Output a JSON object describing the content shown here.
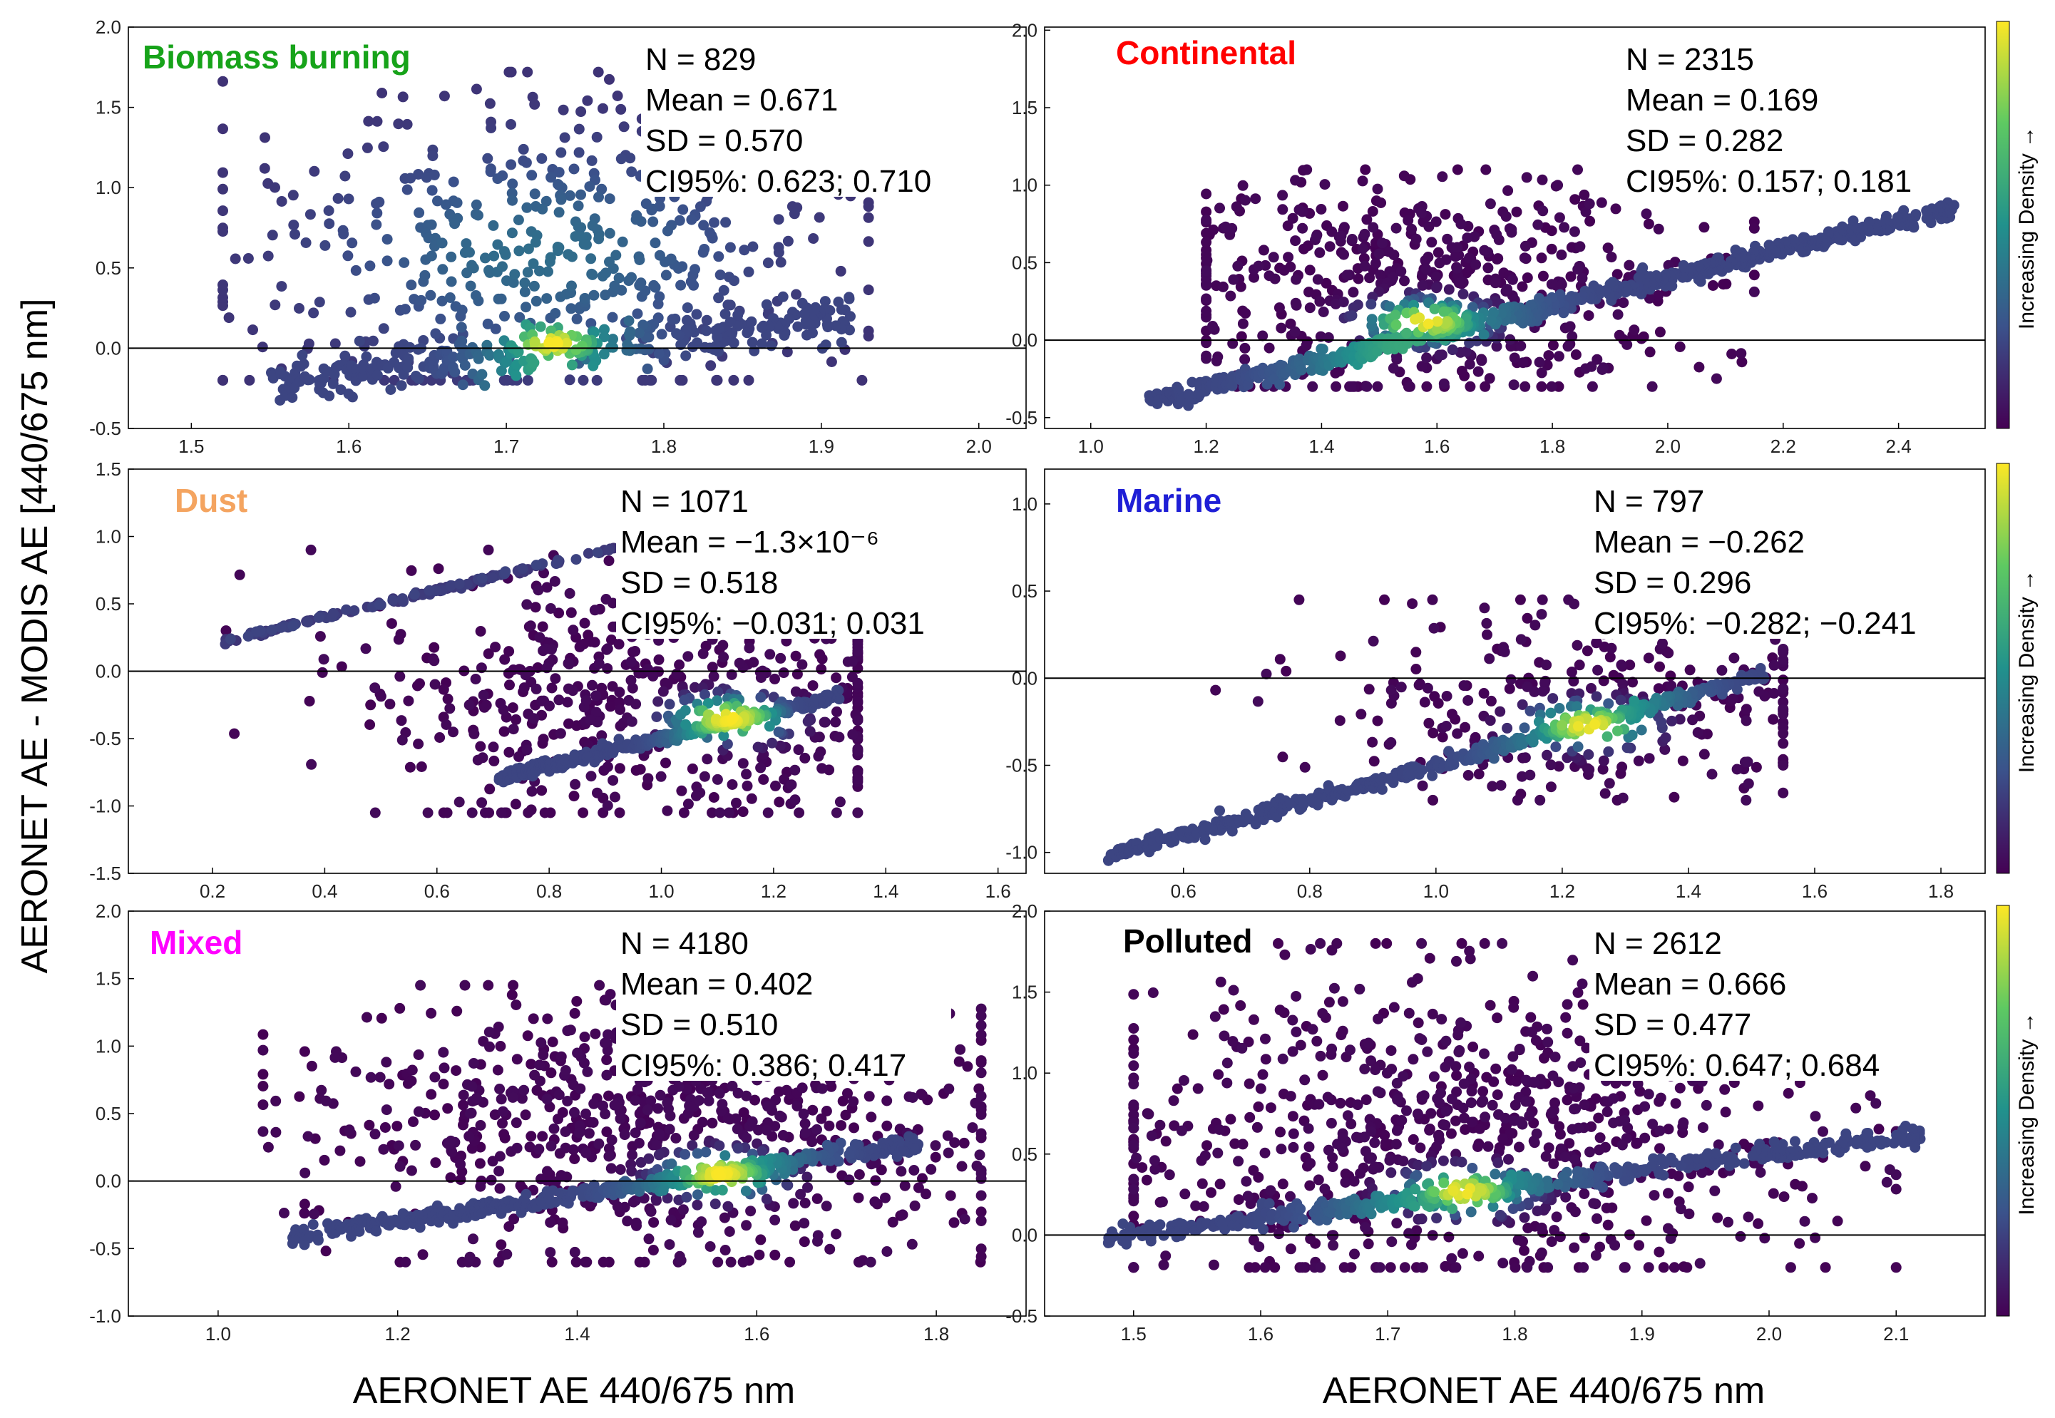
{
  "figure": {
    "xlabel_left": "AERONET AE 440/675 nm",
    "xlabel_right": "AERONET AE 440/675 nm",
    "ylabel": "AERONET AE - MODIS AE [440/675 nm]",
    "colorbar_label": "Increasing Density →"
  },
  "colors": {
    "low": "#440154",
    "mid": "#21918c",
    "high": "#fde725"
  },
  "chart_data": [
    {
      "type": "scatter",
      "title": "Biomass burning",
      "title_color": "#17a31a",
      "xlim": [
        1.46,
        2.03
      ],
      "ylim": [
        -0.5,
        2.0
      ],
      "xticks": [
        1.5,
        1.6,
        1.7,
        1.8,
        1.9,
        2.0
      ],
      "xtick_labels": [
        "1.5",
        "1.6",
        "1.7",
        "1.8",
        "1.9",
        "2.0"
      ],
      "yticks": [
        -0.5,
        0.0,
        0.5,
        1.0,
        1.5,
        2.0
      ],
      "ytick_labels": [
        "-0.5",
        "0.0",
        "0.5",
        "1.0",
        "1.5",
        "2.0"
      ],
      "stats": [
        "N = 829",
        "Mean = 0.671",
        "SD = 0.570",
        "CI95%: 0.623; 0.710"
      ],
      "n_points": 829,
      "mean": 0.671,
      "sd": 0.57,
      "ci95": [
        0.623,
        0.71
      ],
      "reference_line_y": 0.0,
      "colorbar": false,
      "line_band": {
        "x": [
          1.55,
          1.92
        ],
        "y": [
          -0.2,
          0.2
        ],
        "weight": 0.45,
        "spread": 0.07,
        "peak_x": 1.73,
        "peak_y": 0.02
      },
      "cloud": {
        "x": [
          1.52,
          1.93
        ],
        "y": [
          -0.2,
          1.72
        ],
        "peak_x": 1.72,
        "peak_y": 0.6
      },
      "density_center": [
        1.73,
        0.03
      ]
    },
    {
      "type": "scatter",
      "title": "Continental",
      "title_color": "#ff0000",
      "xlim": [
        0.92,
        2.55
      ],
      "ylim": [
        -0.57,
        2.02
      ],
      "xticks": [
        1.0,
        1.2,
        1.4,
        1.6,
        1.8,
        2.0,
        2.2,
        2.4
      ],
      "xtick_labels": [
        "1.0",
        "1.2",
        "1.4",
        "1.6",
        "1.8",
        "2.0",
        "2.2",
        "2.4"
      ],
      "yticks": [
        -0.5,
        0.0,
        0.5,
        1.0,
        1.5,
        2.0
      ],
      "ytick_labels": [
        "-0.5",
        "0.0",
        "0.5",
        "1.0",
        "1.5",
        "2.0"
      ],
      "stats": [
        "N = 2315",
        "Mean = 0.169",
        "SD = 0.282",
        "CI95%: 0.157; 0.181"
      ],
      "n_points": 2315,
      "mean": 0.169,
      "sd": 0.282,
      "ci95": [
        0.157,
        0.181
      ],
      "reference_line_y": 0.0,
      "colorbar": true,
      "line_band": {
        "x": [
          1.1,
          2.5
        ],
        "y": [
          -0.4,
          0.85
        ],
        "weight": 0.55,
        "spread": 0.03,
        "peak_x": 1.55,
        "peak_y": 0.08
      },
      "cloud": {
        "x": [
          1.2,
          2.15
        ],
        "y": [
          -0.3,
          1.1
        ],
        "peak_x": 1.6,
        "peak_y": 0.3
      },
      "density_center": [
        1.58,
        0.12
      ]
    },
    {
      "type": "scatter",
      "title": "Dust",
      "title_color": "#f4a460",
      "xlim": [
        0.05,
        1.65
      ],
      "ylim": [
        -1.5,
        1.5
      ],
      "xticks": [
        0.2,
        0.4,
        0.6,
        0.8,
        1.0,
        1.2,
        1.4,
        1.6
      ],
      "xtick_labels": [
        "0.2",
        "0.4",
        "0.6",
        "0.8",
        "1.0",
        "1.2",
        "1.4",
        "1.6"
      ],
      "yticks": [
        -1.5,
        -1.0,
        -0.5,
        0.0,
        0.5,
        1.0,
        1.5
      ],
      "ytick_labels": [
        "-1.5",
        "-1.0",
        "-0.5",
        "0.0",
        "0.5",
        "1.0",
        "1.5"
      ],
      "stats": [
        "N = 1071",
        "Mean = −1.3×10⁻⁶",
        "SD = 0.518",
        "CI95%: −0.031; 0.031"
      ],
      "n_points": 1071,
      "mean": -1.3e-06,
      "sd": 0.518,
      "ci95": [
        -0.031,
        0.031
      ],
      "reference_line_y": 0.0,
      "colorbar": false,
      "line_band": {
        "x": [
          0.7,
          1.32
        ],
        "y": [
          -0.8,
          -0.18
        ],
        "weight": 0.35,
        "spread": 0.02,
        "peak_x": 1.1,
        "peak_y": -0.35
      },
      "upper_band": {
        "x": [
          0.22,
          0.92
        ],
        "y": [
          0.22,
          0.92
        ],
        "weight": 0.12
      },
      "cloud": {
        "x": [
          0.2,
          1.35
        ],
        "y": [
          -1.05,
          0.9
        ],
        "peak_x": 1.0,
        "peak_y": -0.2
      },
      "density_center": [
        1.12,
        -0.35
      ]
    },
    {
      "type": "scatter",
      "title": "Marine",
      "title_color": "#1f1fd6",
      "xlim": [
        0.38,
        1.87
      ],
      "ylim": [
        -1.12,
        1.2
      ],
      "xticks": [
        0.6,
        0.8,
        1.0,
        1.2,
        1.4,
        1.6,
        1.8
      ],
      "xtick_labels": [
        "0.6",
        "0.8",
        "1.0",
        "1.2",
        "1.4",
        "1.6",
        "1.8"
      ],
      "yticks": [
        -1.0,
        -0.5,
        0.0,
        0.5,
        1.0
      ],
      "ytick_labels": [
        "-1.0",
        "-0.5",
        "0.0",
        "0.5",
        "1.0"
      ],
      "stats": [
        "N = 797",
        "Mean = −0.262",
        "SD = 0.296",
        "CI95%: −0.282; −0.241"
      ],
      "n_points": 797,
      "mean": -0.262,
      "sd": 0.296,
      "ci95": [
        -0.282,
        -0.241
      ],
      "reference_line_y": 0.0,
      "colorbar": true,
      "line_band": {
        "x": [
          0.48,
          1.52
        ],
        "y": [
          -1.02,
          0.02
        ],
        "weight": 0.6,
        "spread": 0.02,
        "peak_x": 1.25,
        "peak_y": -0.25
      },
      "cloud": {
        "x": [
          0.65,
          1.55
        ],
        "y": [
          -0.7,
          0.45
        ],
        "peak_x": 1.25,
        "peak_y": -0.15
      },
      "density_center": [
        1.24,
        -0.27
      ]
    },
    {
      "type": "scatter",
      "title": "Mixed",
      "title_color": "#ff00ff",
      "xlim": [
        0.9,
        1.9
      ],
      "ylim": [
        -1.0,
        2.0
      ],
      "xticks": [
        1.0,
        1.2,
        1.4,
        1.6,
        1.8
      ],
      "xtick_labels": [
        "1.0",
        "1.2",
        "1.4",
        "1.6",
        "1.8"
      ],
      "yticks": [
        -1.0,
        -0.5,
        0.0,
        0.5,
        1.0,
        1.5,
        2.0
      ],
      "ytick_labels": [
        "-1.0",
        "-0.5",
        "0.0",
        "0.5",
        "1.0",
        "1.5",
        "2.0"
      ],
      "stats": [
        "N = 4180",
        "Mean = 0.402",
        "SD = 0.510",
        "CI95%: 0.386; 0.417"
      ],
      "n_points": 4180,
      "mean": 0.402,
      "sd": 0.51,
      "ci95": [
        0.386,
        0.417
      ],
      "reference_line_y": 0.0,
      "colorbar": false,
      "line_band": {
        "x": [
          1.08,
          1.78
        ],
        "y": [
          -0.42,
          0.28
        ],
        "weight": 0.35,
        "spread": 0.03,
        "peak_x": 1.56,
        "peak_y": 0.05
      },
      "cloud": {
        "x": [
          1.05,
          1.85
        ],
        "y": [
          -0.6,
          1.45
        ],
        "peak_x": 1.5,
        "peak_y": 0.4
      },
      "density_center": [
        1.56,
        0.05
      ]
    },
    {
      "type": "scatter",
      "title": "Polluted",
      "title_color": "#000000",
      "xlim": [
        1.43,
        2.17
      ],
      "ylim": [
        -0.5,
        2.0
      ],
      "xticks": [
        1.5,
        1.6,
        1.7,
        1.8,
        1.9,
        2.0,
        2.1
      ],
      "xtick_labels": [
        "1.5",
        "1.6",
        "1.7",
        "1.8",
        "1.9",
        "2.0",
        "2.1"
      ],
      "yticks": [
        -0.5,
        0.0,
        0.5,
        1.0,
        1.5,
        2.0
      ],
      "ytick_labels": [
        "-0.5",
        "0.0",
        "0.5",
        "1.0",
        "1.5",
        "2.0"
      ],
      "stats": [
        "N = 2612",
        "Mean = 0.666",
        "SD = 0.477",
        "CI95%: 0.647; 0.684"
      ],
      "n_points": 2612,
      "mean": 0.666,
      "sd": 0.477,
      "ci95": [
        0.647,
        0.684
      ],
      "reference_line_y": 0.0,
      "colorbar": true,
      "line_band": {
        "x": [
          1.48,
          2.12
        ],
        "y": [
          -0.02,
          0.62
        ],
        "weight": 0.35,
        "spread": 0.03,
        "peak_x": 1.75,
        "peak_y": 0.25
      },
      "cloud": {
        "x": [
          1.5,
          2.1
        ],
        "y": [
          -0.2,
          1.8
        ],
        "peak_x": 1.76,
        "peak_y": 0.6
      },
      "density_center": [
        1.76,
        0.27
      ]
    }
  ]
}
